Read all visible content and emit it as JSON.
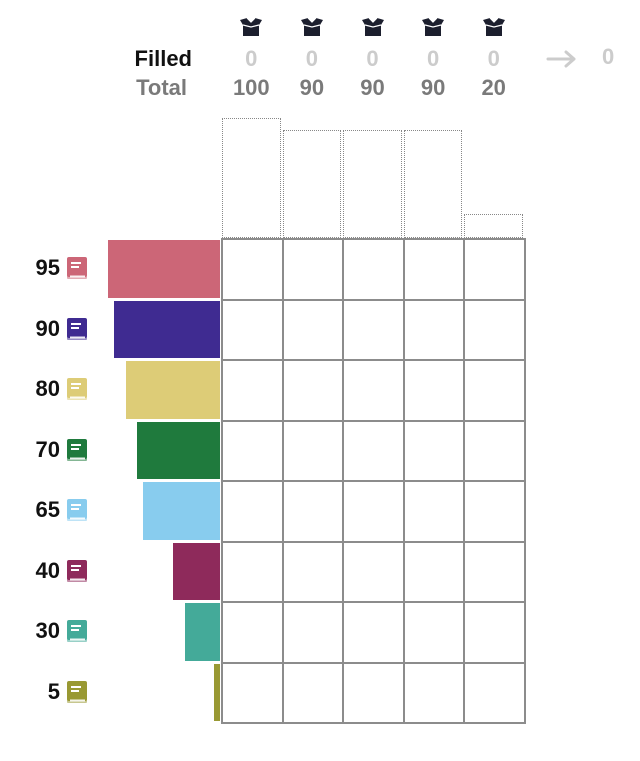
{
  "header": {
    "filled_label": "Filled",
    "total_label": "Total",
    "sum_filled": "0"
  },
  "knapsacks": [
    {
      "filled": "0",
      "total": "100",
      "capacity": 100,
      "icon": "box-icon"
    },
    {
      "filled": "0",
      "total": "90",
      "capacity": 90,
      "icon": "box-icon"
    },
    {
      "filled": "0",
      "total": "90",
      "capacity": 90,
      "icon": "box-icon"
    },
    {
      "filled": "0",
      "total": "90",
      "capacity": 90,
      "icon": "box-icon"
    },
    {
      "filled": "0",
      "total": "20",
      "capacity": 20,
      "icon": "box-icon"
    }
  ],
  "items": [
    {
      "value": "95",
      "size": 95,
      "color": "#cc6677",
      "icon": "book-icon"
    },
    {
      "value": "90",
      "size": 90,
      "color": "#3f2b91",
      "icon": "book-icon"
    },
    {
      "value": "80",
      "size": 80,
      "color": "#ddcc77",
      "icon": "book-icon"
    },
    {
      "value": "70",
      "size": 70,
      "color": "#1f7a3d",
      "icon": "book-icon"
    },
    {
      "value": "65",
      "size": 65,
      "color": "#88ccee",
      "icon": "book-icon"
    },
    {
      "value": "40",
      "size": 40,
      "color": "#8e2a5b",
      "icon": "book-icon"
    },
    {
      "value": "30",
      "size": 30,
      "color": "#44aa99",
      "icon": "book-icon"
    },
    {
      "value": "5",
      "size": 5,
      "color": "#999933",
      "icon": "book-icon"
    }
  ],
  "icons": {
    "box": "open-box-icon",
    "book": "book-icon",
    "arrow": "right-arrow-icon"
  },
  "colors": {
    "grid_line": "#8c8c8c",
    "filled_text": "#cccccc",
    "total_text": "#7a7a7a",
    "box_icon": "#1c1f2e"
  }
}
